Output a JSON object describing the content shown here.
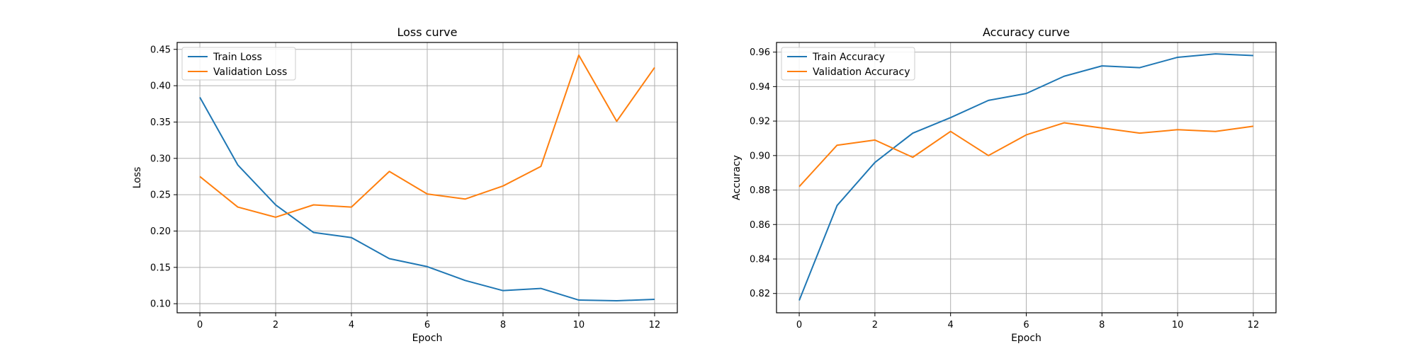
{
  "colors": {
    "train": "#1f77b4",
    "validation": "#ff7f0e",
    "grid": "#b0b0b0"
  },
  "chart_data": [
    {
      "type": "line",
      "title": "Loss curve",
      "xlabel": "Epoch",
      "ylabel": "Loss",
      "xlim": [
        -0.6,
        12.6
      ],
      "ylim": [
        0.0875,
        0.4595
      ],
      "xticks": [
        0,
        2,
        4,
        6,
        8,
        10,
        12
      ],
      "yticks": [
        0.1,
        0.15,
        0.2,
        0.25,
        0.3,
        0.35,
        0.4,
        0.45
      ],
      "ytick_labels": [
        "0.10",
        "0.15",
        "0.20",
        "0.25",
        "0.30",
        "0.35",
        "0.40",
        "0.45"
      ],
      "grid": true,
      "legend_position": "top-left",
      "x": [
        0,
        1,
        2,
        3,
        4,
        5,
        6,
        7,
        8,
        9,
        10,
        11,
        12
      ],
      "series": [
        {
          "name": "Train Loss",
          "color": "#1f77b4",
          "values": [
            0.384,
            0.291,
            0.236,
            0.198,
            0.191,
            0.162,
            0.151,
            0.132,
            0.118,
            0.121,
            0.105,
            0.104,
            0.106
          ]
        },
        {
          "name": "Validation Loss",
          "color": "#ff7f0e",
          "values": [
            0.275,
            0.233,
            0.219,
            0.236,
            0.233,
            0.282,
            0.251,
            0.244,
            0.262,
            0.289,
            0.442,
            0.351,
            0.425
          ]
        }
      ]
    },
    {
      "type": "line",
      "title": "Accuracy curve",
      "xlabel": "Epoch",
      "ylabel": "Accuracy",
      "xlim": [
        -0.6,
        12.6
      ],
      "ylim": [
        0.8088,
        0.9656
      ],
      "xticks": [
        0,
        2,
        4,
        6,
        8,
        10,
        12
      ],
      "yticks": [
        0.82,
        0.84,
        0.86,
        0.88,
        0.9,
        0.92,
        0.94,
        0.96
      ],
      "ytick_labels": [
        "0.82",
        "0.84",
        "0.86",
        "0.88",
        "0.90",
        "0.92",
        "0.94",
        "0.96"
      ],
      "grid": true,
      "legend_position": "top-left",
      "x": [
        0,
        1,
        2,
        3,
        4,
        5,
        6,
        7,
        8,
        9,
        10,
        11,
        12
      ],
      "series": [
        {
          "name": "Train Accuracy",
          "color": "#1f77b4",
          "values": [
            0.816,
            0.871,
            0.896,
            0.913,
            0.922,
            0.932,
            0.936,
            0.946,
            0.952,
            0.951,
            0.957,
            0.959,
            0.958
          ]
        },
        {
          "name": "Validation Accuracy",
          "color": "#ff7f0e",
          "values": [
            0.882,
            0.906,
            0.909,
            0.899,
            0.914,
            0.9,
            0.912,
            0.919,
            0.916,
            0.913,
            0.915,
            0.914,
            0.917
          ]
        }
      ]
    }
  ]
}
